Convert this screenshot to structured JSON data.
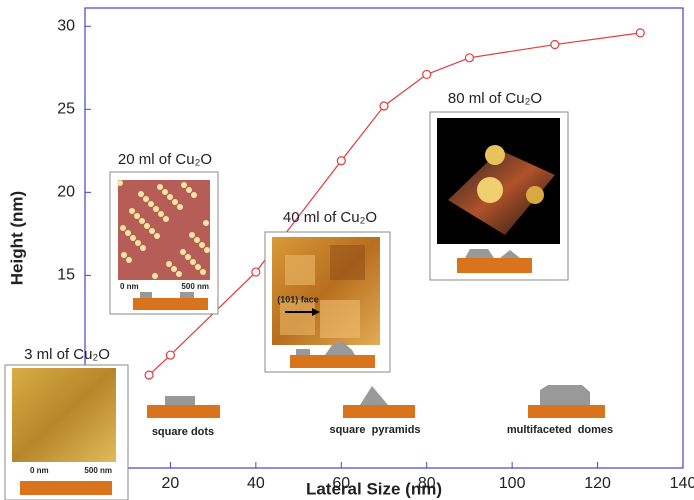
{
  "chart_data": {
    "type": "line",
    "x_label": "Lateral Size (nm)",
    "y_label": "Height (nm)",
    "x": [
      15,
      20,
      40,
      60,
      70,
      80,
      90,
      110,
      130
    ],
    "series": [
      {
        "color": "#e03c3c",
        "values": [
          9.0,
          10.2,
          15.2,
          21.9,
          25.2,
          27.1,
          28.1,
          28.9,
          29.6
        ]
      }
    ],
    "xlim": [
      0,
      140
    ],
    "ylim": [
      3.4,
      31.1
    ],
    "xticks": [
      20,
      40,
      60,
      80,
      100,
      120,
      140
    ],
    "yticks": [
      15,
      20,
      25,
      30
    ],
    "annotations": {
      "inset_3": {
        "title": "3 ml of Cu₂O",
        "scale_start": "0 nm",
        "scale_end": "500 nm"
      },
      "inset_20": {
        "title": "20 ml of Cu₂O",
        "scale_start": "0 nm",
        "scale_end": "500 nm"
      },
      "inset_40": {
        "title": "40 ml of Cu₂O",
        "face": "(101) face"
      },
      "inset_80": {
        "title": "80 ml of Cu₂O"
      },
      "shapes": [
        "square dots",
        "square  pyramids",
        "multifaceted  domes"
      ]
    }
  }
}
